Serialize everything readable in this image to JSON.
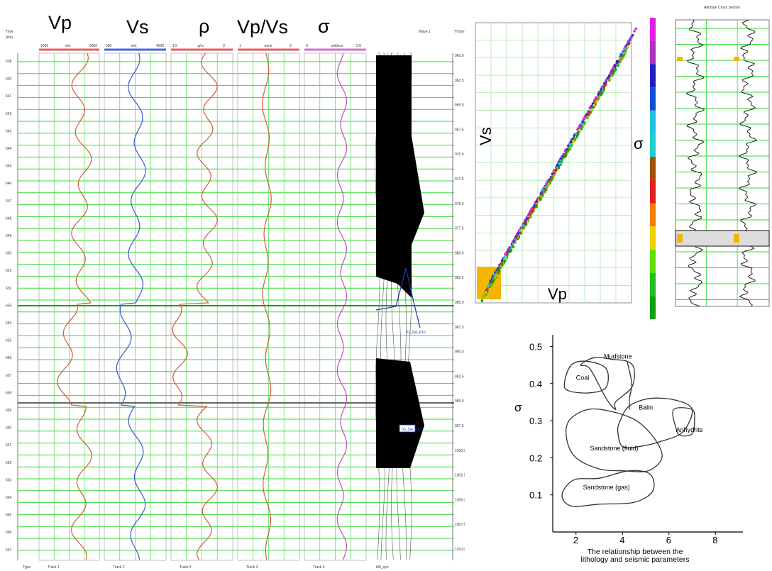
{
  "log_panel": {
    "track_titles": [
      "Vp",
      "Vs",
      "ρ",
      "Vp/Vs",
      "σ"
    ],
    "scale_left": [
      "1000",
      "500",
      "1.5",
      "1",
      "0"
    ],
    "scale_unit": [
      "m/s",
      "m/s",
      "g/cc",
      "none",
      "unitless"
    ],
    "scale_right": [
      "6000",
      "4000",
      "3",
      "3",
      "0.5"
    ],
    "track_footers": [
      "Track 1",
      "Track 2",
      "Track 3",
      "Track 4",
      "Track 5"
    ],
    "time_header": "Time (ms)",
    "time_ticks": [
      "638",
      "640",
      "641",
      "642",
      "643",
      "644",
      "645",
      "646",
      "647",
      "648",
      "649",
      "650",
      "651",
      "652",
      "653",
      "654",
      "655",
      "656",
      "657",
      "658",
      "659",
      "660",
      "661",
      "662",
      "663",
      "664",
      "665",
      "666",
      "667"
    ],
    "depth_header": "TVD(m)",
    "depth_ticks": [
      "960.0",
      "962.5",
      "965.0",
      "967.5",
      "970.0",
      "972.5",
      "975.0",
      "977.5",
      "980.0",
      "982.5",
      "985.0",
      "987.5",
      "990.0",
      "992.5",
      "995.0",
      "997.5",
      "1000.0",
      "1002.5",
      "1005.0",
      "1007.5",
      "1010.0"
    ],
    "types_label": "Type",
    "synthetic_footer": "trl0_syn",
    "synthetic_header": "Wave 1",
    "marker_labels": [
      "TG_Sel_P10",
      "TG_Sel_P10"
    ]
  },
  "crossplot": {
    "xlabel": "Vp",
    "ylabel": "Vs",
    "color_axis_label": "σ",
    "colorbar_colors": [
      "#e020e0",
      "#b030c0",
      "#2020c0",
      "#1050d0",
      "#20c0e0",
      "#20d0d0",
      "#a05000",
      "#e02020",
      "#f08000",
      "#f0d000",
      "#60e000",
      "#20c020",
      "#10a010"
    ]
  },
  "well_log_mini": {
    "title": "Attribute Cross Section"
  },
  "chart_data": {
    "type": "scatter",
    "title": "",
    "xlabel": "The relationship between the lithology and seismic parameters",
    "ylabel": "σ",
    "xlim": [
      1,
      9
    ],
    "ylim": [
      0,
      0.52
    ],
    "xticks": [
      "2",
      "4",
      "6",
      "8"
    ],
    "yticks": [
      "0.1",
      "0.2",
      "0.3",
      "0.4",
      "0.5"
    ],
    "xlabel_lines": [
      "The relationship between the",
      "lithology and seismic parameters"
    ],
    "regions": [
      {
        "name": "Coal",
        "label_x": 2.0,
        "label_y": 0.41,
        "outline": [
          [
            1.5,
            0.4
          ],
          [
            1.8,
            0.45
          ],
          [
            2.5,
            0.46
          ],
          [
            3.3,
            0.44
          ],
          [
            3.3,
            0.39
          ],
          [
            2.6,
            0.375
          ],
          [
            1.7,
            0.38
          ]
        ]
      },
      {
        "name": "Mudstone",
        "label_x": 3.2,
        "label_y": 0.467,
        "outline": [
          [
            2.2,
            0.45
          ],
          [
            2.8,
            0.47
          ],
          [
            3.6,
            0.465
          ],
          [
            4.2,
            0.46
          ],
          [
            4.5,
            0.44
          ],
          [
            4.4,
            0.39
          ],
          [
            3.7,
            0.35
          ],
          [
            3.7,
            0.33
          ],
          [
            3.3,
            0.36
          ],
          [
            2.6,
            0.44
          ]
        ]
      },
      {
        "name": "Balin",
        "label_x": 4.7,
        "label_y": 0.33,
        "outline": [
          [
            3.9,
            0.3
          ],
          [
            4.3,
            0.34
          ],
          [
            5.2,
            0.36
          ],
          [
            6.3,
            0.355
          ],
          [
            7.0,
            0.33
          ],
          [
            6.6,
            0.27
          ],
          [
            5.7,
            0.245
          ],
          [
            4.7,
            0.23
          ],
          [
            4.0,
            0.23
          ],
          [
            3.8,
            0.27
          ]
        ]
      },
      {
        "name": "Anhydrite",
        "label_x": 6.3,
        "label_y": 0.27,
        "outline": [
          [
            6.2,
            0.33
          ],
          [
            7.0,
            0.33
          ],
          [
            7.1,
            0.3
          ],
          [
            7.0,
            0.265
          ],
          [
            6.5,
            0.26
          ],
          [
            6.3,
            0.28
          ]
        ]
      },
      {
        "name": "Sandstone (fluid)",
        "label_x": 2.6,
        "label_y": 0.22,
        "outline": [
          [
            1.7,
            0.3
          ],
          [
            2.5,
            0.33
          ],
          [
            3.5,
            0.325
          ],
          [
            4.6,
            0.3
          ],
          [
            5.4,
            0.25
          ],
          [
            5.7,
            0.2
          ],
          [
            5.1,
            0.165
          ],
          [
            4.0,
            0.165
          ],
          [
            3.0,
            0.17
          ],
          [
            2.0,
            0.2
          ],
          [
            1.6,
            0.25
          ]
        ]
      },
      {
        "name": "Sandstone (gas)",
        "label_x": 2.3,
        "label_y": 0.115,
        "outline": [
          [
            1.4,
            0.1
          ],
          [
            1.9,
            0.14
          ],
          [
            3.0,
            0.145
          ],
          [
            4.3,
            0.165
          ],
          [
            5.2,
            0.155
          ],
          [
            5.3,
            0.11
          ],
          [
            4.5,
            0.08
          ],
          [
            3.0,
            0.075
          ],
          [
            1.8,
            0.07
          ]
        ]
      }
    ],
    "extra_lines": [
      {
        "name": "Mudstone tail",
        "points": [
          [
            4.2,
            0.46
          ],
          [
            4.4,
            0.4
          ],
          [
            4.3,
            0.36
          ],
          [
            4.3,
            0.33
          ]
        ]
      }
    ]
  }
}
